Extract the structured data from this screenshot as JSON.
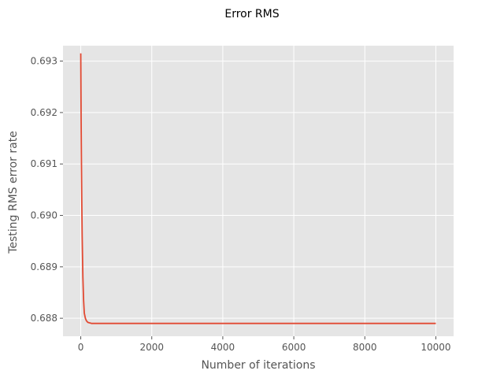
{
  "chart_data": {
    "type": "line",
    "title": "Error RMS",
    "xlabel": "Number of iterations",
    "ylabel": "Testing RMS error rate",
    "xlim": [
      -500,
      10500
    ],
    "ylim": [
      0.68765,
      0.6933
    ],
    "x_ticks": [
      0,
      2000,
      4000,
      6000,
      8000,
      10000
    ],
    "x_tick_labels": [
      "0",
      "2000",
      "4000",
      "6000",
      "8000",
      "10000"
    ],
    "y_ticks": [
      0.688,
      0.689,
      0.69,
      0.691,
      0.692,
      0.693
    ],
    "y_tick_labels": [
      "0.688",
      "0.689",
      "0.690",
      "0.691",
      "0.692",
      "0.693"
    ],
    "grid": true,
    "series": [
      {
        "color": "#E24A33",
        "x": [
          0,
          10,
          20,
          30,
          40,
          60,
          80,
          100,
          130,
          160,
          200,
          250,
          300,
          400,
          500,
          1000,
          2000,
          4000,
          6000,
          8000,
          10000
        ],
        "y": [
          0.69315,
          0.6919,
          0.691,
          0.6902,
          0.6896,
          0.6888,
          0.68835,
          0.6881,
          0.688,
          0.68795,
          0.68792,
          0.68791,
          0.6879,
          0.6879,
          0.6879,
          0.6879,
          0.6879,
          0.6879,
          0.6879,
          0.6879,
          0.6879
        ]
      }
    ]
  }
}
